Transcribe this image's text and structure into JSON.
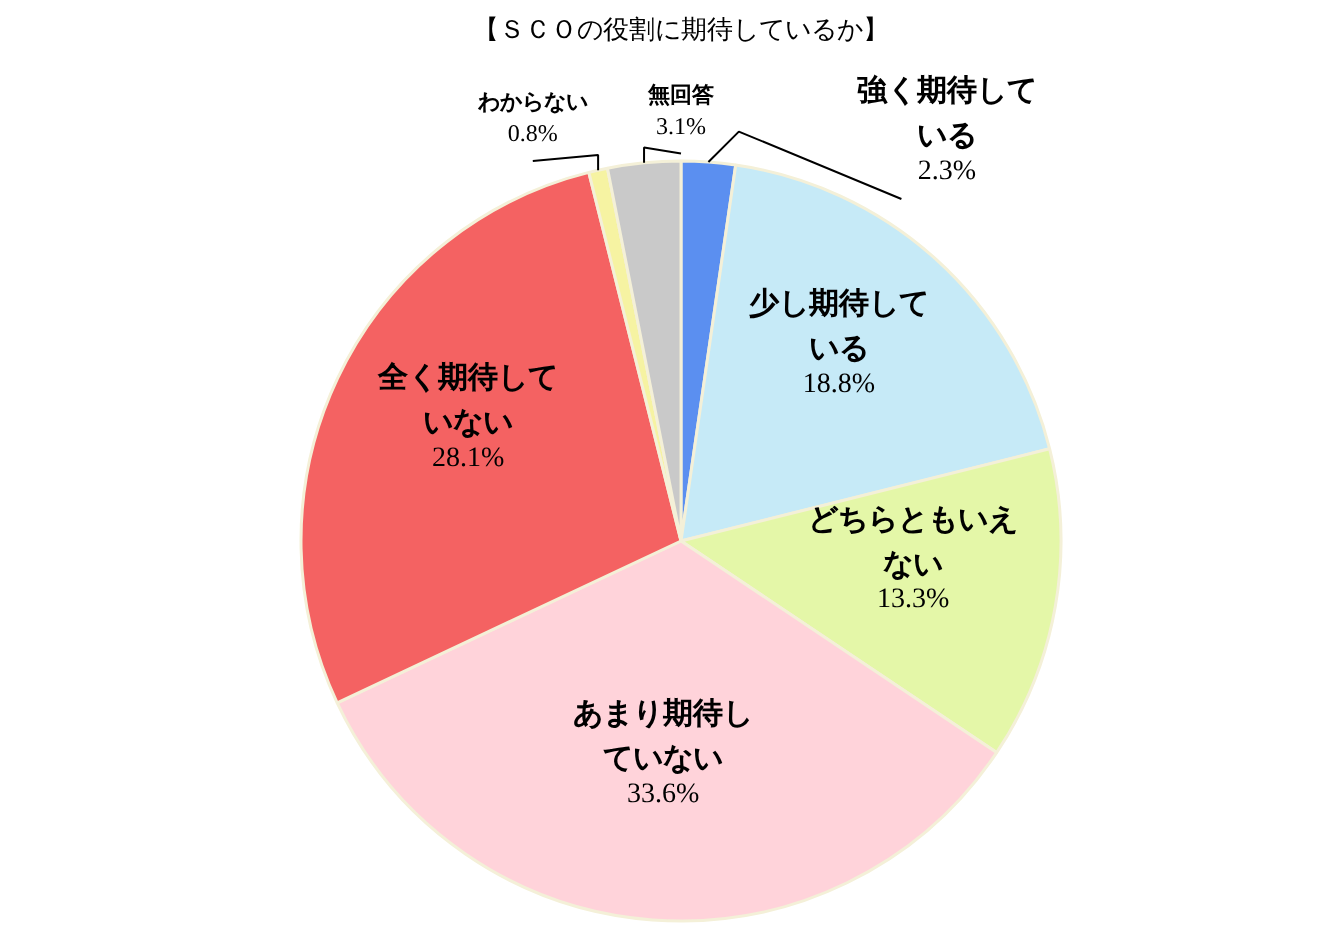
{
  "chart_data": {
    "type": "pie",
    "title": "【ＳＣＯの役割に期待しているか】",
    "categories": [
      "強く期待している",
      "少し期待している",
      "どちらともいえない",
      "あまり期待していない",
      "全く期待していない",
      "わからない",
      "無回答"
    ],
    "values": [
      2.3,
      18.8,
      13.3,
      33.6,
      28.1,
      0.8,
      3.1
    ],
    "colors": [
      "#5b8ff0",
      "#c6eaf7",
      "#e4f7a8",
      "#ffd3da",
      "#f46262",
      "#f6f3a2",
      "#c9c9c9"
    ],
    "value_labels": [
      "2.3%",
      "18.8%",
      "13.3%",
      "33.6%",
      "28.1%",
      "0.8%",
      "3.1%"
    ]
  }
}
